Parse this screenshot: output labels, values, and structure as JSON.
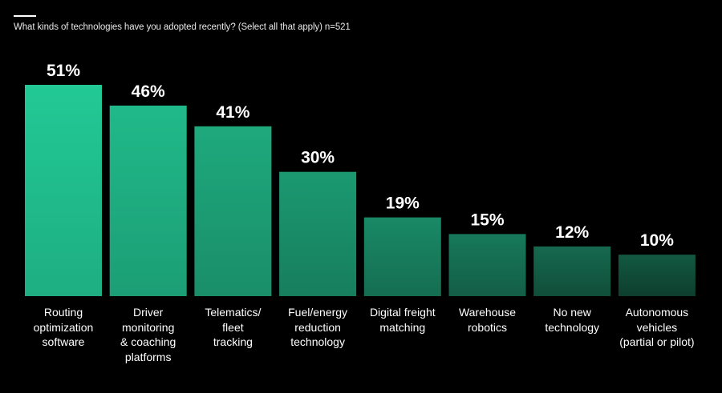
{
  "header": {
    "subtitle": "What kinds of technologies have you adopted recently? (Select all that apply) n=521"
  },
  "colors": {
    "background": "#000000",
    "bar_top": "#22c995",
    "bar_bottom": "#0d3326"
  },
  "chart_data": {
    "type": "bar",
    "title": "What kinds of technologies have you adopted recently? (Select all that apply) n=521",
    "xlabel": "",
    "ylabel": "",
    "ylim": [
      0,
      51
    ],
    "grid": false,
    "legend": "none",
    "categories": [
      "Routing\noptimization\nsoftware",
      "Driver\nmonitoring\n& coaching\nplatforms",
      "Telematics/\nfleet\ntracking",
      "Fuel/energy\nreduction\ntechnology",
      "Digital freight\nmatching",
      "Warehouse\nrobotics",
      "No new\ntechnology",
      "Autonomous\nvehicles\n(partial or pilot)"
    ],
    "values": [
      51,
      46,
      41,
      30,
      19,
      15,
      12,
      10
    ],
    "value_labels": [
      "51%",
      "46%",
      "41%",
      "30%",
      "19%",
      "15%",
      "12%",
      "10%"
    ]
  }
}
